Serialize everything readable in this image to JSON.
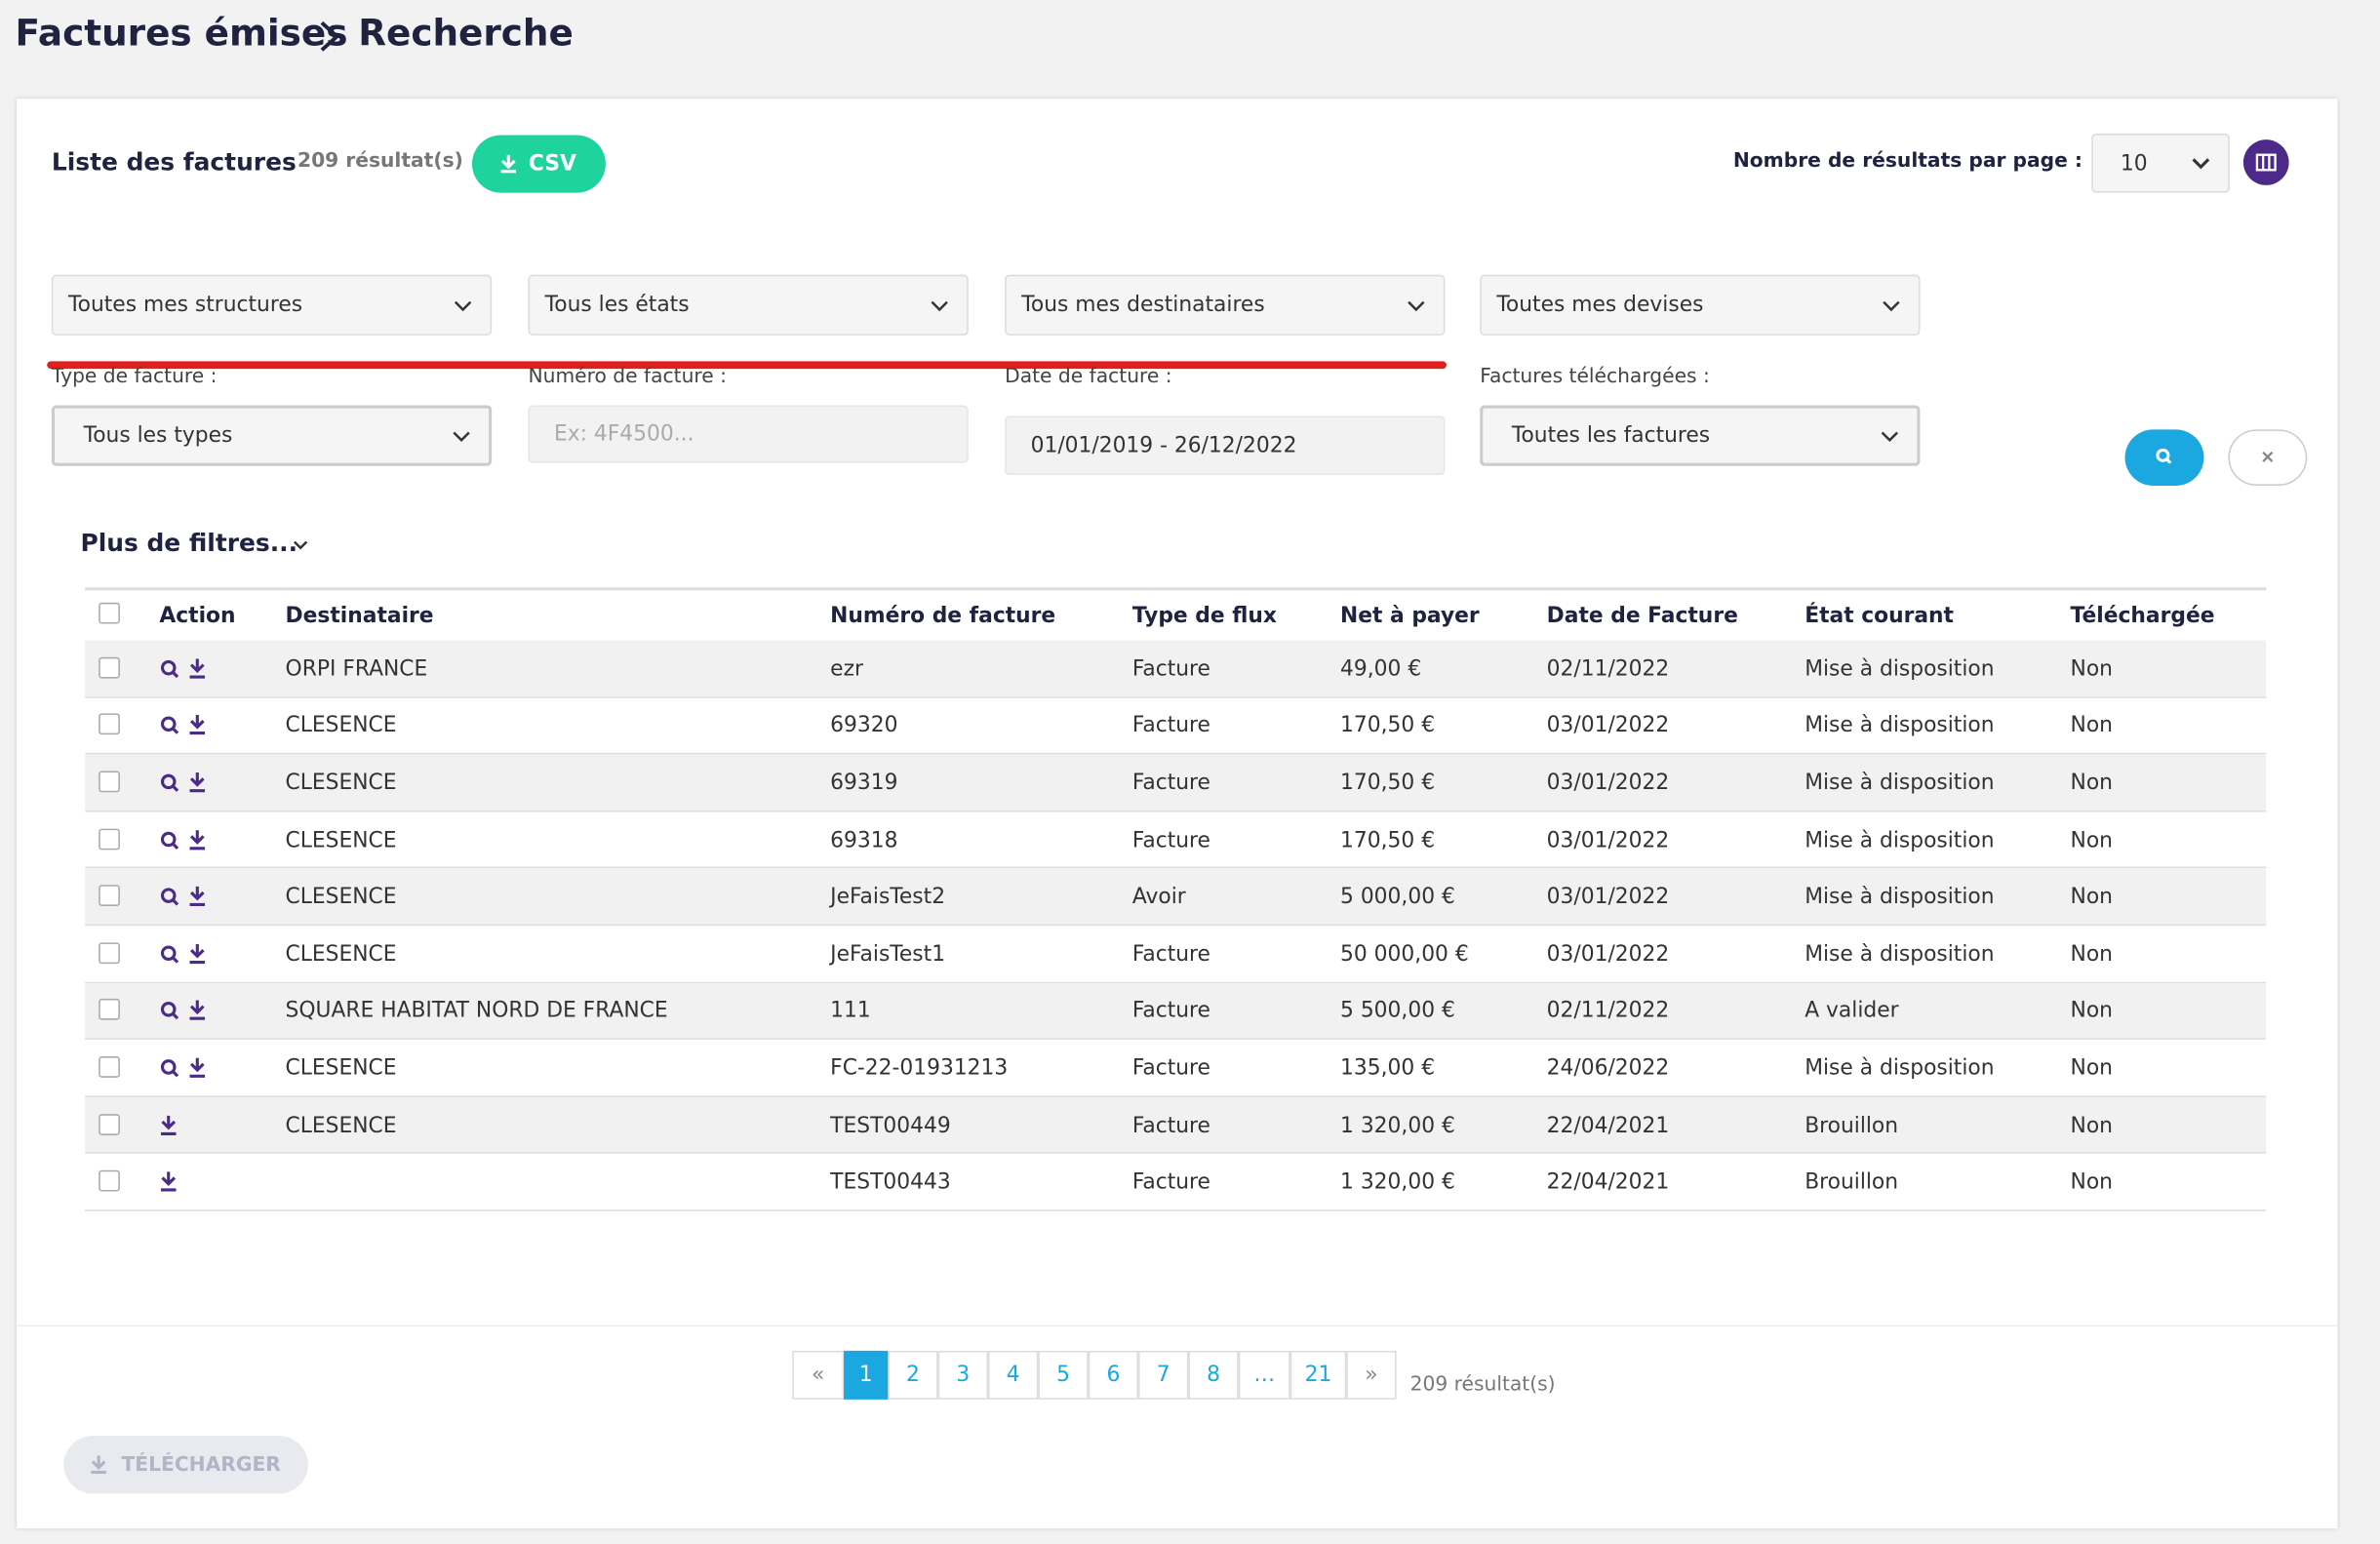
{
  "breadcrumb": [
    "Factures émises",
    "Recherche"
  ],
  "list": {
    "title": "Liste des factures",
    "count": "209 résultat(s)",
    "csv": "CSV",
    "per_page_label": "Nombre de résultats par page :",
    "per_page": "10"
  },
  "filters": {
    "row1": [
      "Toutes mes structures",
      "Tous les états",
      "Tous mes destinataires",
      "Toutes mes devises"
    ],
    "row2": [
      {
        "label": "Type de facture :",
        "value": "Tous les types"
      },
      {
        "label": "Numéro de facture :",
        "placeholder": "Ex: 4F4500..."
      },
      {
        "label": "Date de facture :",
        "value": "01/01/2019 - 26/12/2022"
      },
      {
        "label": "Factures téléchargées :",
        "value": "Toutes les factures"
      }
    ],
    "more": "Plus de filtres..."
  },
  "table": {
    "headers": [
      "Action",
      "Destinataire",
      "Numéro de facture",
      "Type de flux",
      "Net à payer",
      "Date de Facture",
      "État courant",
      "Téléchargée"
    ],
    "rows": [
      [
        "ORPI FRANCE",
        "ezr",
        "Facture",
        "49,00 €",
        "02/11/2022",
        "Mise à disposition",
        "Non"
      ],
      [
        "CLESENCE",
        "69320",
        "Facture",
        "170,50 €",
        "03/01/2022",
        "Mise à disposition",
        "Non"
      ],
      [
        "CLESENCE",
        "69319",
        "Facture",
        "170,50 €",
        "03/01/2022",
        "Mise à disposition",
        "Non"
      ],
      [
        "CLESENCE",
        "69318",
        "Facture",
        "170,50 €",
        "03/01/2022",
        "Mise à disposition",
        "Non"
      ],
      [
        "CLESENCE",
        "JeFaisTest2",
        "Avoir",
        "5 000,00 €",
        "03/01/2022",
        "Mise à disposition",
        "Non"
      ],
      [
        "CLESENCE",
        "JeFaisTest1",
        "Facture",
        "50 000,00 €",
        "03/01/2022",
        "Mise à disposition",
        "Non"
      ],
      [
        "SQUARE HABITAT NORD DE FRANCE",
        "111",
        "Facture",
        "5 500,00 €",
        "02/11/2022",
        "A valider",
        "Non"
      ],
      [
        "CLESENCE",
        "FC-22-01931213",
        "Facture",
        "135,00 €",
        "24/06/2022",
        "Mise à disposition",
        "Non"
      ],
      [
        "CLESENCE",
        "TEST00449",
        "Facture",
        "1 320,00 €",
        "22/04/2021",
        "Brouillon",
        "Non"
      ],
      [
        null,
        "TEST00443",
        "Facture",
        "1 320,00 €",
        "22/04/2021",
        "Brouillon",
        "Non"
      ]
    ]
  },
  "pagination": {
    "pages": [
      "«",
      "1",
      "2",
      "3",
      "4",
      "5",
      "6",
      "7",
      "8",
      "…",
      "21",
      "»"
    ],
    "count": "209 résultat(s)"
  },
  "download_button": "TÉLÉCHARGER"
}
